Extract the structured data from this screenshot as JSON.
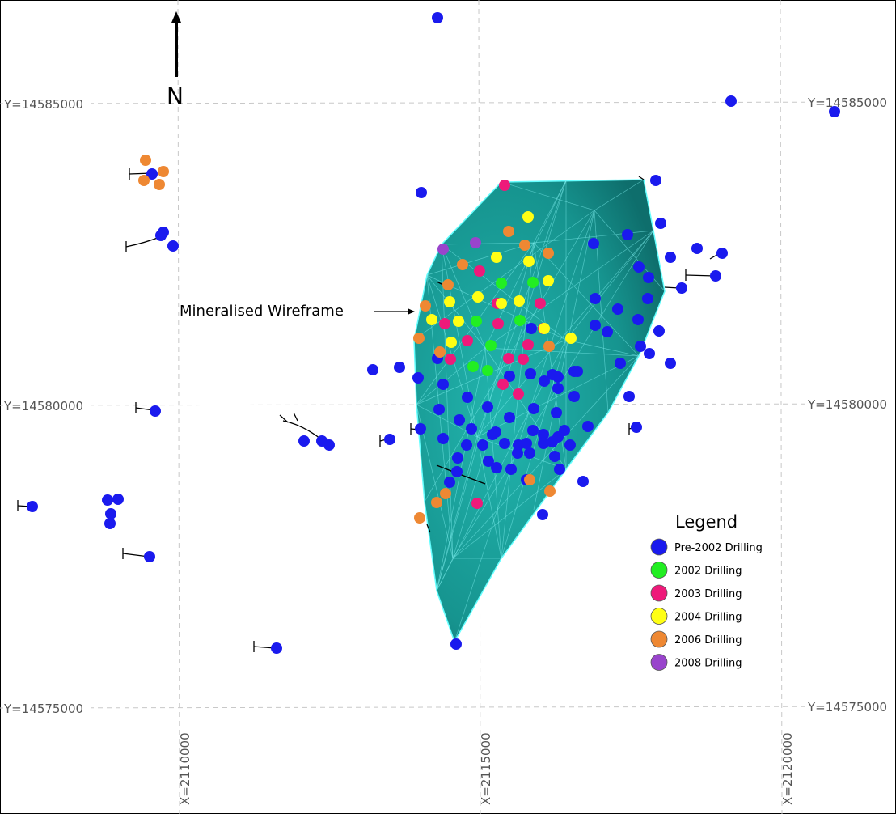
{
  "grid": {
    "y_labels": [
      "Y=14585000",
      "Y=14580000",
      "Y=14575000"
    ],
    "x_labels": [
      "X=2110000",
      "X=2115000",
      "X=2120000"
    ]
  },
  "north_label": "N",
  "wireframe_label": "Mineralised Wireframe",
  "legend": {
    "title": "Legend",
    "items": [
      {
        "label": "Pre-2002 Drilling",
        "color": "#1a1aee"
      },
      {
        "label": "2002 Drilling",
        "color": "#22ee22"
      },
      {
        "label": "2003 Drilling",
        "color": "#ee1a7a"
      },
      {
        "label": "2004 Drilling",
        "color": "#ffff14"
      },
      {
        "label": "2006 Drilling",
        "color": "#ee8833"
      },
      {
        "label": "2008 Drilling",
        "color": "#9944cc"
      }
    ]
  },
  "colors": {
    "wireframe_fill": "#1aa7a2",
    "wireframe_edge": "#66ffff",
    "grid_line": "#c8c8c8",
    "frame": "#000000"
  }
}
